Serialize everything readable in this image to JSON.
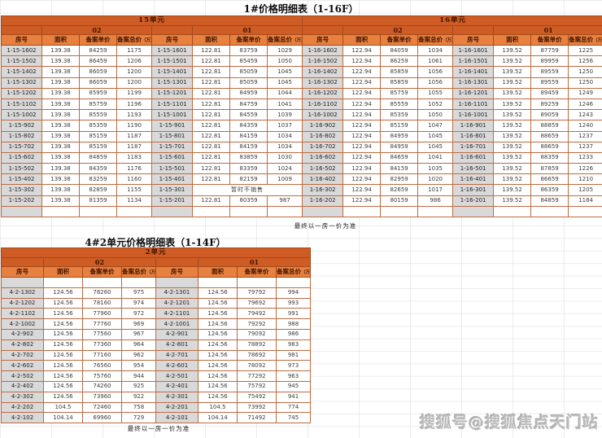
{
  "page": {
    "watermark": "搜狐号@搜狐焦点天门站",
    "colors": {
      "header_dark_orange": "#cf5c24",
      "header_light_orange": "#e8813f",
      "room_number_cell_gray": "#d9d9d9",
      "table_border": "#bc6b42",
      "watermark_gray": "#bdbdbd"
    }
  },
  "table1": {
    "title": "1#价格明细表（1-16F）",
    "footnote": "最终以一房一价为准",
    "units": [
      {
        "label": "15单元",
        "cols": 8
      },
      {
        "label": "16单元",
        "cols": 8
      }
    ],
    "groups": [
      "02",
      "01",
      "02",
      "01"
    ],
    "col_headers": [
      "房号",
      "面积",
      "备案单价",
      "备案总价"
    ],
    "col_note": "（万）",
    "merges": [
      {
        "row": 13,
        "col": 5,
        "span": 3
      }
    ],
    "rows": [
      [
        "1-15-1602",
        "139.38",
        "84259",
        "1175",
        "1-15-1601",
        "122.81",
        "83759",
        "1029",
        "1-16-1602",
        "122.94",
        "84059",
        "1034",
        "1-16-1601",
        "139.52",
        "87759",
        "1225"
      ],
      [
        "1-15-1502",
        "139.38",
        "86459",
        "1206",
        "1-15-1501",
        "122.81",
        "85459",
        "1050",
        "1-16-1502",
        "122.94",
        "86259",
        "1061",
        "1-16-1501",
        "139.52",
        "89959",
        "1256"
      ],
      [
        "1-15-1402",
        "139.38",
        "86059",
        "1200",
        "1-15-1401",
        "122.81",
        "85059",
        "1045",
        "1-16-1402",
        "122.94",
        "85859",
        "1056",
        "1-16-1401",
        "139.52",
        "89559",
        "1250"
      ],
      [
        "1-15-1302",
        "139.38",
        "86059",
        "1200",
        "1-15-1301",
        "122.81",
        "85059",
        "1045",
        "1-16-1302",
        "122.94",
        "85859",
        "1056",
        "1-16-1301",
        "139.52",
        "89559",
        "1250"
      ],
      [
        "1-15-1202",
        "139.38",
        "85959",
        "1199",
        "1-15-1201",
        "122.81",
        "84959",
        "1044",
        "1-16-1202",
        "122.94",
        "85759",
        "1055",
        "1-16-1201",
        "139.52",
        "89459",
        "1249"
      ],
      [
        "1-15-1102",
        "139.38",
        "85759",
        "1196",
        "1-15-1101",
        "122.81",
        "84759",
        "1041",
        "1-16-1102",
        "122.94",
        "85559",
        "1052",
        "1-16-1101",
        "139.52",
        "89259",
        "1246"
      ],
      [
        "1-15-1002",
        "139.38",
        "85559",
        "1193",
        "1-15-1001",
        "122.81",
        "84559",
        "1039",
        "1-16-1002",
        "122.94",
        "85359",
        "1050",
        "1-16-1001",
        "139.52",
        "89059",
        "1243"
      ],
      [
        "1-15-902",
        "139.38",
        "85359",
        "1190",
        "1-15-901",
        "122.81",
        "84359",
        "1037",
        "1-16-902",
        "122.94",
        "85159",
        "1047",
        "1-16-901",
        "139.52",
        "88859",
        "1240"
      ],
      [
        "1-15-802",
        "139.38",
        "85159",
        "1187",
        "1-15-801",
        "122.81",
        "84159",
        "1034",
        "1-16-802",
        "122.94",
        "84959",
        "1045",
        "1-16-801",
        "139.52",
        "88659",
        "1237"
      ],
      [
        "1-15-702",
        "139.38",
        "85159",
        "1187",
        "1-15-701",
        "122.81",
        "84159",
        "1034",
        "1-16-702",
        "122.94",
        "84959",
        "1045",
        "1-16-701",
        "139.52",
        "88659",
        "1237"
      ],
      [
        "1-15-602",
        "139.38",
        "84859",
        "1183",
        "1-15-601",
        "122.81",
        "83859",
        "1030",
        "1-16-602",
        "122.94",
        "84659",
        "1041",
        "1-16-601",
        "139.52",
        "88359",
        "1233"
      ],
      [
        "1-15-502",
        "139.38",
        "84359",
        "1176",
        "1-15-501",
        "122.81",
        "83359",
        "1024",
        "1-16-502",
        "122.94",
        "84159",
        "1035",
        "1-16-501",
        "139.52",
        "87859",
        "1226"
      ],
      [
        "1-15-402",
        "139.38",
        "83259",
        "1160",
        "1-15-401",
        "122.81",
        "82159",
        "1009",
        "1-16-402",
        "122.94",
        "82959",
        "1020",
        "1-16-401",
        "139.52",
        "86659",
        "1210"
      ],
      [
        "1-15-302",
        "139.38",
        "82859",
        "1155",
        "1-15-301",
        "暂时不销售",
        "",
        "",
        "1-16-302",
        "122.94",
        "82659",
        "1017",
        "1-16-301",
        "139.52",
        "86359",
        "1205"
      ],
      [
        "1-15-202",
        "139.38",
        "81359",
        "1134",
        "1-15-201",
        "122.81",
        "80359",
        "987",
        "1-16-202",
        "122.94",
        "80159",
        "986",
        "1-16-201",
        "139.52",
        "84859",
        "1184"
      ],
      [
        "",
        "",
        "",
        "",
        "",
        "",
        "",
        "",
        "",
        "",
        "",
        "",
        "",
        "",
        "",
        ""
      ]
    ]
  },
  "table2": {
    "title": "4#2单元价格明细表（1-14F）",
    "footnote": "最终以一房一价为准",
    "units": [
      {
        "label": "2单元",
        "cols": 8
      }
    ],
    "groups": [
      "02",
      "01"
    ],
    "col_headers": [
      "房号",
      "面积",
      "备案单价",
      "备案总价"
    ],
    "col_note": "（万）",
    "merges": [],
    "rows": [
      [
        "",
        "",
        "",
        "",
        "",
        "",
        "",
        ""
      ],
      [
        "4-2-1302",
        "124.56",
        "78260",
        "975",
        "4-2-1301",
        "124.56",
        "79792",
        "994"
      ],
      [
        "4-2-1202",
        "124.56",
        "78160",
        "974",
        "4-2-1201",
        "124.56",
        "79692",
        "993"
      ],
      [
        "4-2-1102",
        "124.56",
        "77960",
        "972",
        "4-2-1101",
        "124.56",
        "79492",
        "991"
      ],
      [
        "4-2-1002",
        "124.56",
        "77760",
        "969",
        "4-2-1001",
        "124.56",
        "79292",
        "988"
      ],
      [
        "4-2-902",
        "124.56",
        "77560",
        "967",
        "4-2-901",
        "124.56",
        "79092",
        "986"
      ],
      [
        "4-2-802",
        "124.56",
        "77360",
        "964",
        "4-2-801",
        "124.56",
        "78892",
        "983"
      ],
      [
        "4-2-702",
        "124.56",
        "77160",
        "962",
        "4-2-701",
        "124.56",
        "78692",
        "981"
      ],
      [
        "4-2-602",
        "124.56",
        "76560",
        "954",
        "4-2-601",
        "124.56",
        "78092",
        "973"
      ],
      [
        "4-2-502",
        "124.56",
        "75760",
        "944",
        "4-2-501",
        "124.56",
        "77292",
        "963"
      ],
      [
        "4-2-402",
        "124.56",
        "74260",
        "925",
        "4-2-401",
        "124.56",
        "75792",
        "945"
      ],
      [
        "4-2-302",
        "124.56",
        "73960",
        "922",
        "4-2-301",
        "124.56",
        "75492",
        "941"
      ],
      [
        "4-2-202",
        "104.5",
        "72460",
        "758",
        "4-2-201",
        "104.5",
        "73992",
        "774"
      ],
      [
        "4-2-102",
        "104.14",
        "69960",
        "729",
        "4-2-101",
        "104.14",
        "71492",
        "745"
      ]
    ]
  }
}
